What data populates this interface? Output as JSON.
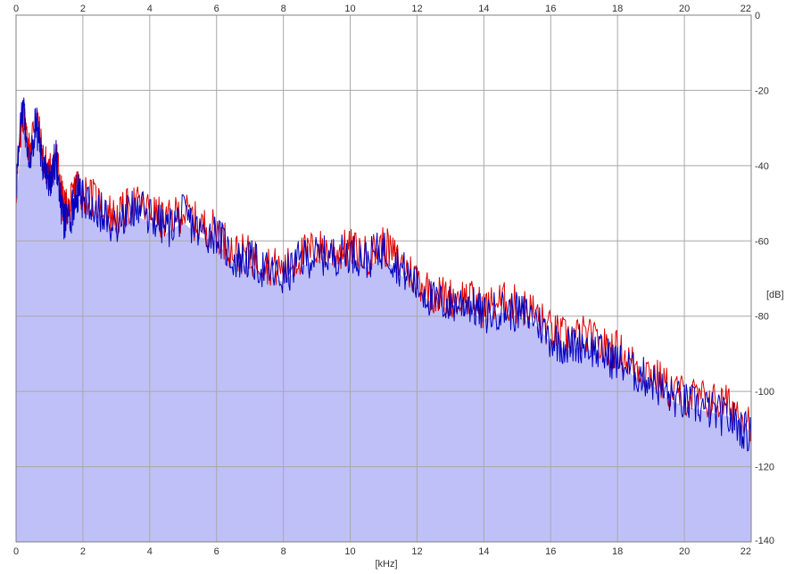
{
  "chart_data": {
    "type": "line",
    "title": "",
    "xlabel": "[kHz]",
    "ylabel": "[dB]",
    "xlim": [
      0,
      22
    ],
    "ylim": [
      -140,
      0
    ],
    "x_ticks": [
      0,
      2,
      4,
      6,
      8,
      10,
      12,
      14,
      16,
      18,
      20,
      22
    ],
    "x_tick_labels": [
      "0",
      "2",
      "4",
      "6",
      "8",
      "10",
      "12",
      "14",
      "16",
      "18",
      "20",
      "22"
    ],
    "y_ticks": [
      0,
      -20,
      -40,
      -60,
      -80,
      -100,
      -120,
      -140
    ],
    "y_tick_labels": [
      "0",
      "-20",
      "-40",
      "-60",
      "-80",
      "-100",
      "-120",
      "-140"
    ],
    "grid": true,
    "colors": {
      "background": "#ffffff",
      "grid": "#a8a8a8",
      "fill": "#c0c0f8",
      "series_1": "#e00000",
      "series_2": "#0000c0"
    },
    "x": [
      0,
      0.2,
      0.4,
      0.6,
      0.8,
      1,
      1.2,
      1.4,
      1.6,
      1.8,
      2,
      2.5,
      3,
      3.5,
      4,
      4.5,
      5,
      5.5,
      6,
      6.5,
      7,
      7.5,
      8,
      8.5,
      9,
      9.5,
      10,
      10.5,
      11,
      11.5,
      12,
      12.5,
      13,
      13.5,
      14,
      14.5,
      15,
      15.5,
      16,
      16.5,
      17,
      17.5,
      18,
      18.5,
      19,
      19.5,
      20,
      20.5,
      21,
      21.5,
      22
    ],
    "series": [
      {
        "values": [
          -47,
          -26,
          -36,
          -26,
          -38,
          -42,
          -37,
          -50,
          -52,
          -45,
          -47,
          -50,
          -54,
          -50,
          -52,
          -55,
          -52,
          -56,
          -57,
          -63,
          -64,
          -66,
          -68,
          -64,
          -62,
          -63,
          -62,
          -64,
          -61,
          -66,
          -70,
          -74,
          -75,
          -75,
          -78,
          -76,
          -77,
          -79,
          -84,
          -86,
          -85,
          -88,
          -89,
          -93,
          -95,
          -99,
          -101,
          -102,
          -103,
          -104,
          -108
        ]
      },
      {
        "values": [
          -45,
          -24,
          -38,
          -28,
          -40,
          -44,
          -38,
          -55,
          -55,
          -47,
          -49,
          -52,
          -56,
          -51,
          -53,
          -57,
          -53,
          -58,
          -58,
          -65,
          -65,
          -68,
          -70,
          -65,
          -64,
          -64,
          -63,
          -65,
          -62,
          -67,
          -72,
          -76,
          -77,
          -76,
          -80,
          -78,
          -79,
          -80,
          -86,
          -88,
          -87,
          -90,
          -92,
          -95,
          -97,
          -101,
          -103,
          -104,
          -106,
          -108,
          -112
        ]
      }
    ]
  }
}
